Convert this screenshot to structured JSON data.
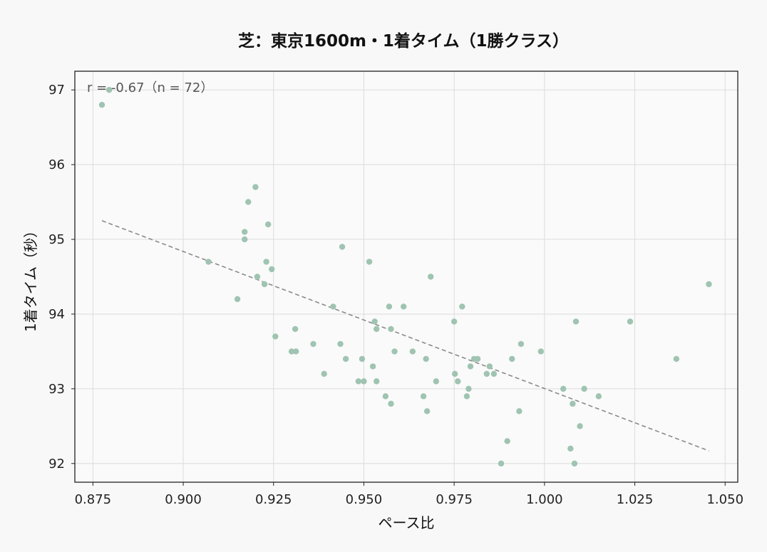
{
  "chart_data": {
    "type": "scatter",
    "title": "芝：東京1600m・1着タイム（1勝クラス）",
    "xlabel": "ペース比",
    "ylabel": "1着タイム（秒）",
    "xlim": [
      0.87,
      1.0535
    ],
    "ylim": [
      91.75,
      97.25
    ],
    "xticks": [
      0.875,
      0.9,
      0.925,
      0.95,
      0.975,
      1.0,
      1.025,
      1.05
    ],
    "xtick_labels": [
      "0.875",
      "0.900",
      "0.925",
      "0.950",
      "0.975",
      "1.000",
      "1.025",
      "1.050"
    ],
    "yticks": [
      92,
      93,
      94,
      95,
      96,
      97
    ],
    "ytick_labels": [
      "92",
      "93",
      "94",
      "95",
      "96",
      "97"
    ],
    "grid": true,
    "annotation": "r = -0.67（n = 72）",
    "point_color": "#9fc4b1",
    "trend_color": "#8a8a8a",
    "trend_line": {
      "x": [
        0.8775,
        1.0455
      ],
      "y": [
        95.25,
        92.17
      ]
    },
    "points": [
      {
        "x": 0.8775,
        "y": 96.8
      },
      {
        "x": 0.8795,
        "y": 97.0
      },
      {
        "x": 0.907,
        "y": 94.7
      },
      {
        "x": 0.915,
        "y": 94.2
      },
      {
        "x": 0.917,
        "y": 95.1
      },
      {
        "x": 0.917,
        "y": 95.0
      },
      {
        "x": 0.918,
        "y": 95.5
      },
      {
        "x": 0.92,
        "y": 95.7
      },
      {
        "x": 0.9205,
        "y": 94.5
      },
      {
        "x": 0.9225,
        "y": 94.4
      },
      {
        "x": 0.923,
        "y": 94.7
      },
      {
        "x": 0.9235,
        "y": 95.2
      },
      {
        "x": 0.9245,
        "y": 94.6
      },
      {
        "x": 0.9255,
        "y": 93.7
      },
      {
        "x": 0.93,
        "y": 93.5
      },
      {
        "x": 0.931,
        "y": 93.8
      },
      {
        "x": 0.9312,
        "y": 93.5
      },
      {
        "x": 0.936,
        "y": 93.6
      },
      {
        "x": 0.939,
        "y": 93.2
      },
      {
        "x": 0.9415,
        "y": 94.1
      },
      {
        "x": 0.9435,
        "y": 93.6
      },
      {
        "x": 0.944,
        "y": 94.9
      },
      {
        "x": 0.945,
        "y": 93.4
      },
      {
        "x": 0.9485,
        "y": 93.1
      },
      {
        "x": 0.9495,
        "y": 93.4
      },
      {
        "x": 0.95,
        "y": 93.1
      },
      {
        "x": 0.9515,
        "y": 94.7
      },
      {
        "x": 0.9525,
        "y": 93.3
      },
      {
        "x": 0.953,
        "y": 93.9
      },
      {
        "x": 0.9535,
        "y": 93.8
      },
      {
        "x": 0.9535,
        "y": 93.1
      },
      {
        "x": 0.956,
        "y": 92.9
      },
      {
        "x": 0.957,
        "y": 94.1
      },
      {
        "x": 0.9575,
        "y": 93.8
      },
      {
        "x": 0.9575,
        "y": 92.8
      },
      {
        "x": 0.9585,
        "y": 93.5
      },
      {
        "x": 0.961,
        "y": 94.1
      },
      {
        "x": 0.9635,
        "y": 93.5
      },
      {
        "x": 0.9665,
        "y": 92.9
      },
      {
        "x": 0.9672,
        "y": 93.4
      },
      {
        "x": 0.9675,
        "y": 92.7
      },
      {
        "x": 0.9685,
        "y": 94.5
      },
      {
        "x": 0.97,
        "y": 93.1
      },
      {
        "x": 0.975,
        "y": 93.9
      },
      {
        "x": 0.9752,
        "y": 93.2
      },
      {
        "x": 0.976,
        "y": 93.1
      },
      {
        "x": 0.9772,
        "y": 94.1
      },
      {
        "x": 0.9785,
        "y": 92.9
      },
      {
        "x": 0.979,
        "y": 93.0
      },
      {
        "x": 0.9795,
        "y": 93.3
      },
      {
        "x": 0.9805,
        "y": 93.4
      },
      {
        "x": 0.9815,
        "y": 93.4
      },
      {
        "x": 0.984,
        "y": 93.2
      },
      {
        "x": 0.9848,
        "y": 93.3
      },
      {
        "x": 0.986,
        "y": 93.2
      },
      {
        "x": 0.988,
        "y": 92.0
      },
      {
        "x": 0.9897,
        "y": 92.3
      },
      {
        "x": 0.991,
        "y": 93.4
      },
      {
        "x": 0.993,
        "y": 92.7
      },
      {
        "x": 0.9935,
        "y": 93.6
      },
      {
        "x": 0.999,
        "y": 93.5
      },
      {
        "x": 1.0052,
        "y": 93.0
      },
      {
        "x": 1.0072,
        "y": 92.2
      },
      {
        "x": 1.0078,
        "y": 92.8
      },
      {
        "x": 1.0083,
        "y": 92.0
      },
      {
        "x": 1.0087,
        "y": 93.9
      },
      {
        "x": 1.0098,
        "y": 92.5
      },
      {
        "x": 1.011,
        "y": 93.0
      },
      {
        "x": 1.015,
        "y": 92.9
      },
      {
        "x": 1.0237,
        "y": 93.9
      },
      {
        "x": 1.0365,
        "y": 93.4
      },
      {
        "x": 1.0455,
        "y": 94.4
      }
    ]
  }
}
